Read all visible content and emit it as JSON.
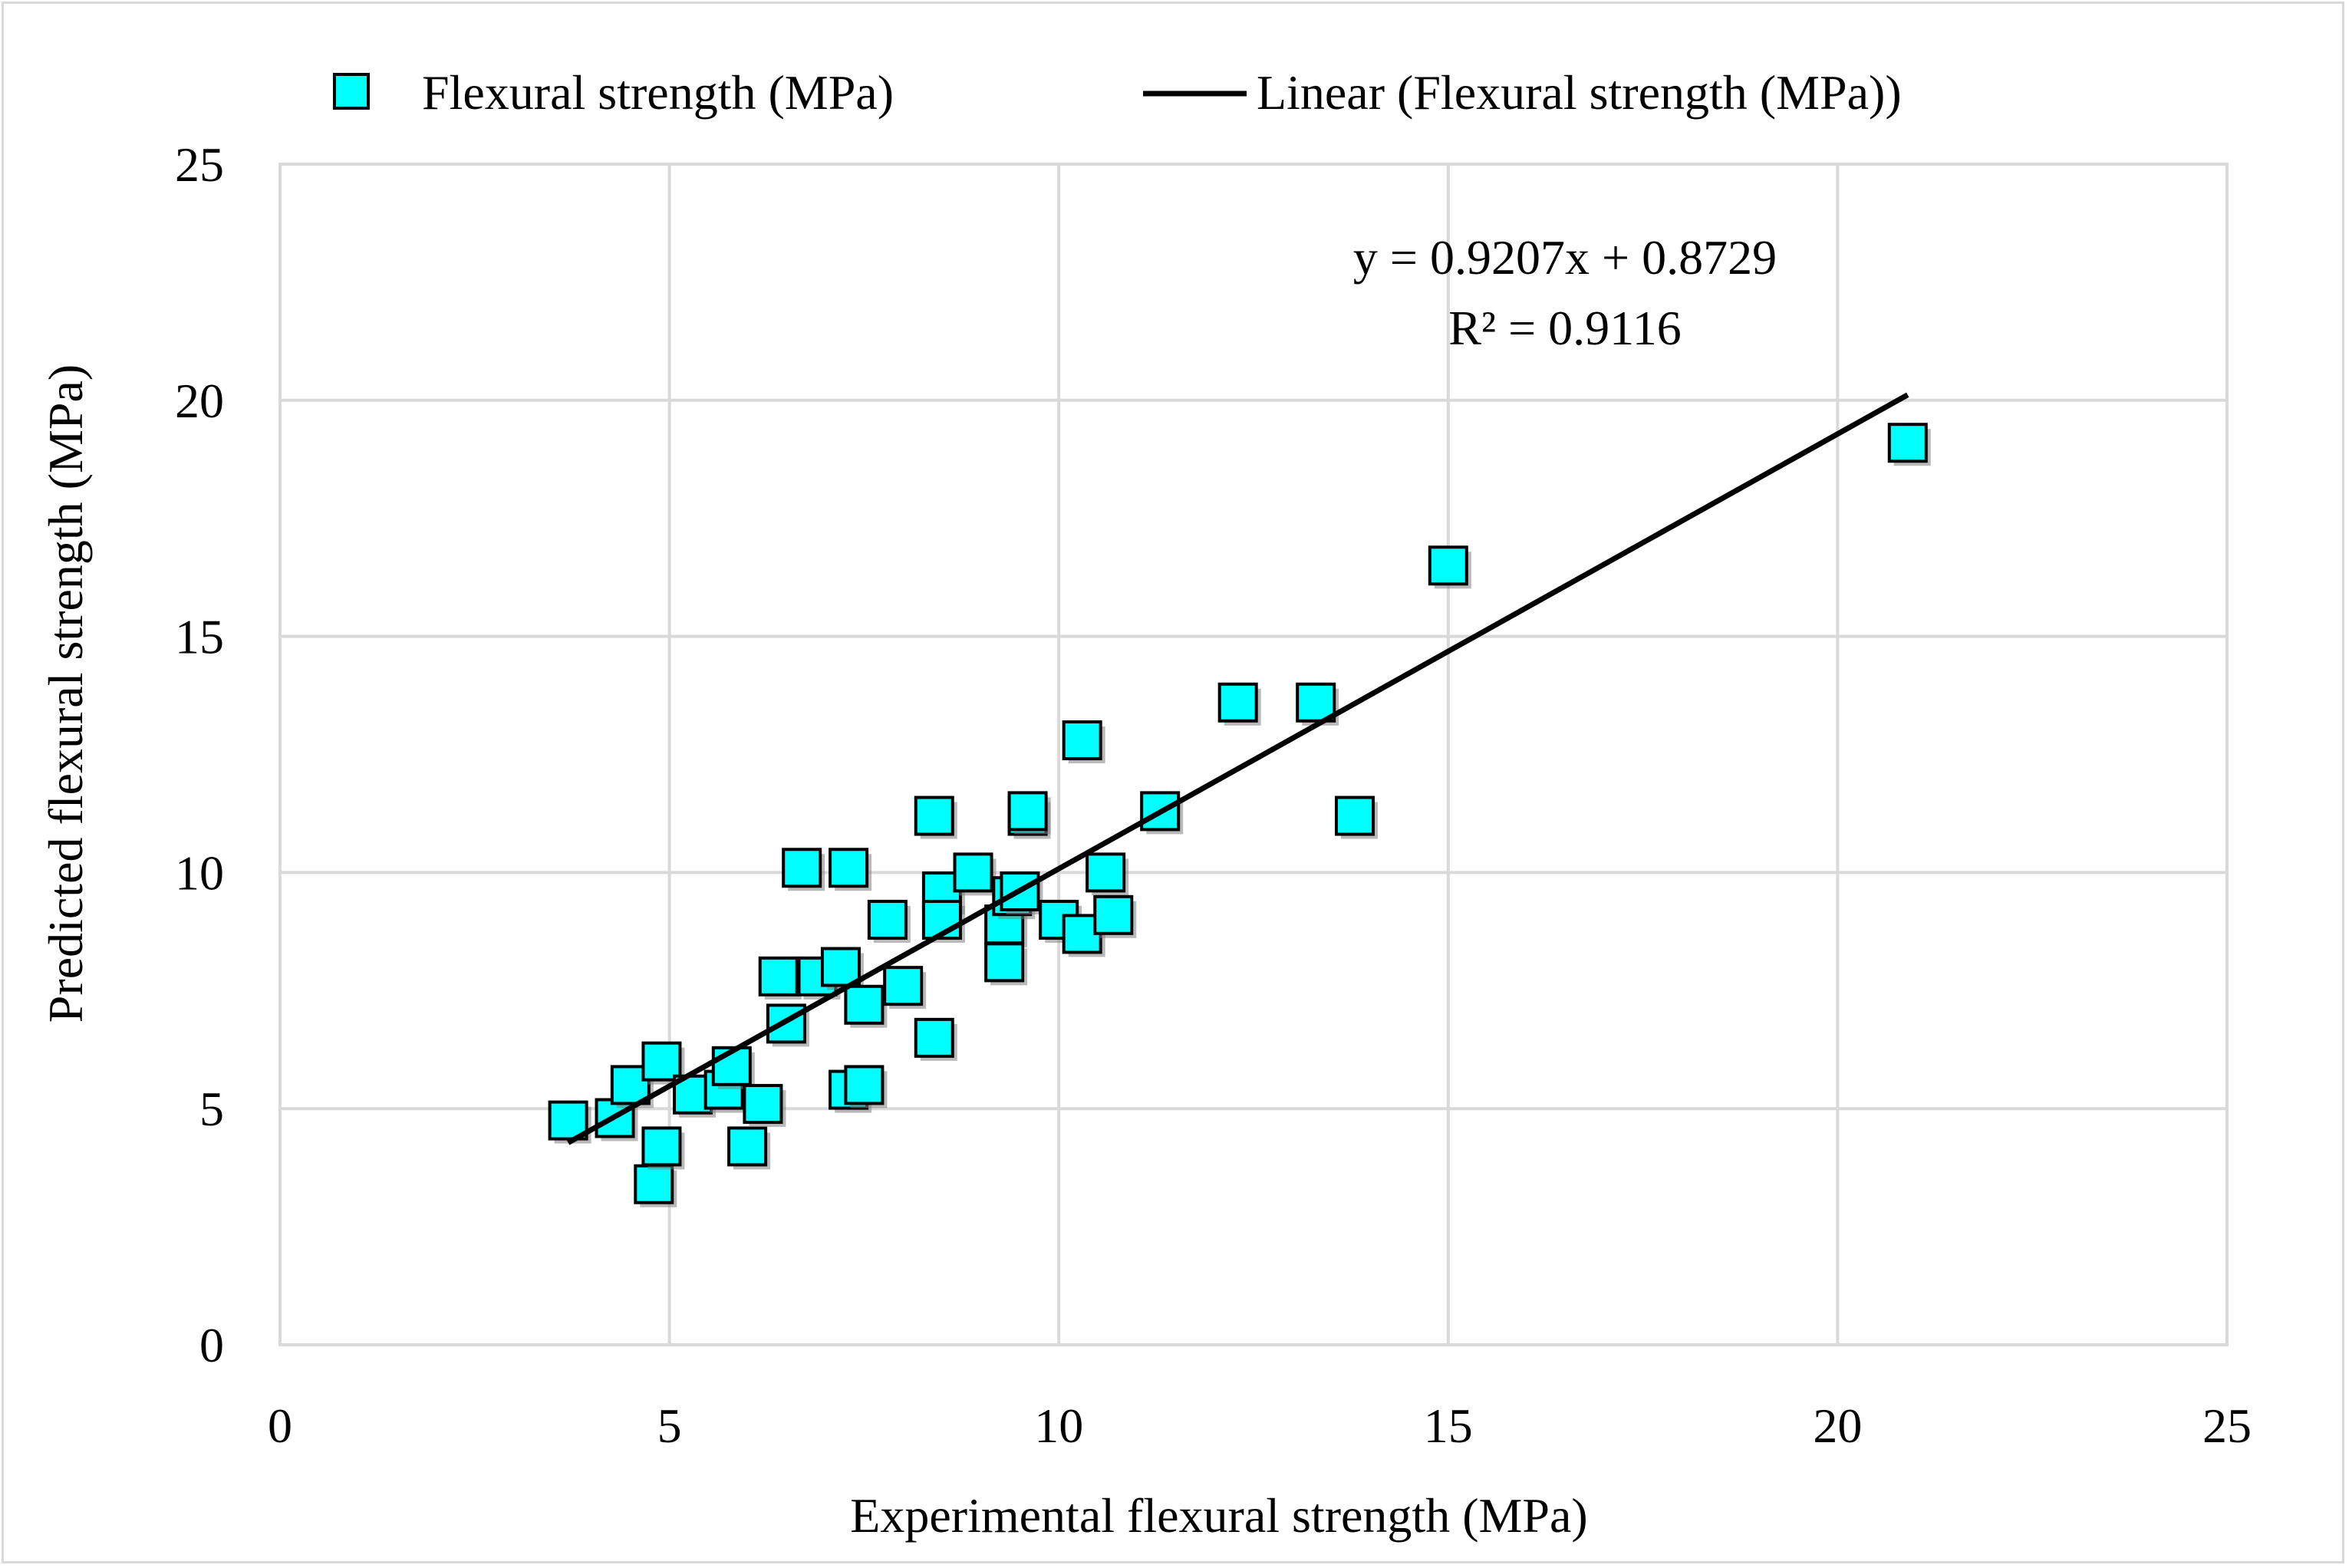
{
  "chart_data": {
    "type": "scatter",
    "title": "",
    "xlabel": "Experimental flexural strength (MPa)",
    "ylabel": "Predicted flexural strength (MPa)",
    "xlim": [
      0,
      25
    ],
    "ylim": [
      0,
      25
    ],
    "xticks": [
      "0",
      "5",
      "10",
      "15",
      "20",
      "25"
    ],
    "yticks": [
      "0",
      "5",
      "10",
      "15",
      "20",
      "25"
    ],
    "grid": true,
    "legend_position": "top",
    "marker_color": "#00ffff",
    "line_color": "#000000",
    "series": [
      {
        "name": "Flexural strength (MPa)",
        "points": [
          [
            3.7,
            4.75
          ],
          [
            4.3,
            4.8
          ],
          [
            4.5,
            5.5
          ],
          [
            4.8,
            3.4
          ],
          [
            4.9,
            4.2
          ],
          [
            4.9,
            6.0
          ],
          [
            5.3,
            5.3
          ],
          [
            5.7,
            5.4
          ],
          [
            5.8,
            5.9
          ],
          [
            6.0,
            4.2
          ],
          [
            6.2,
            5.1
          ],
          [
            6.4,
            7.8
          ],
          [
            6.5,
            6.8
          ],
          [
            6.7,
            10.1
          ],
          [
            6.9,
            7.8
          ],
          [
            7.2,
            8.0
          ],
          [
            7.3,
            10.1
          ],
          [
            7.3,
            5.4
          ],
          [
            7.5,
            5.5
          ],
          [
            7.5,
            7.2
          ],
          [
            7.8,
            9.0
          ],
          [
            8.0,
            7.6
          ],
          [
            8.4,
            6.5
          ],
          [
            8.4,
            11.2
          ],
          [
            8.5,
            9.6
          ],
          [
            8.5,
            9.0
          ],
          [
            8.9,
            10.0
          ],
          [
            9.3,
            8.9
          ],
          [
            9.3,
            8.1
          ],
          [
            9.4,
            9.5
          ],
          [
            9.5,
            9.6
          ],
          [
            9.6,
            11.2
          ],
          [
            9.6,
            11.3
          ],
          [
            10.0,
            9.0
          ],
          [
            10.3,
            12.8
          ],
          [
            10.3,
            8.7
          ],
          [
            10.6,
            10.0
          ],
          [
            10.7,
            9.1
          ],
          [
            11.3,
            11.3
          ],
          [
            12.3,
            13.6
          ],
          [
            13.3,
            13.6
          ],
          [
            13.8,
            11.2
          ],
          [
            15.0,
            16.5
          ],
          [
            20.9,
            19.1
          ]
        ]
      }
    ],
    "trendline": {
      "name": "Linear (Flexural strength (MPa))",
      "slope": 0.9207,
      "intercept": 0.8729,
      "x_range": [
        3.7,
        20.9
      ],
      "equation": "y = 0.9207x + 0.8729",
      "r2": "R² = 0.9116"
    }
  }
}
